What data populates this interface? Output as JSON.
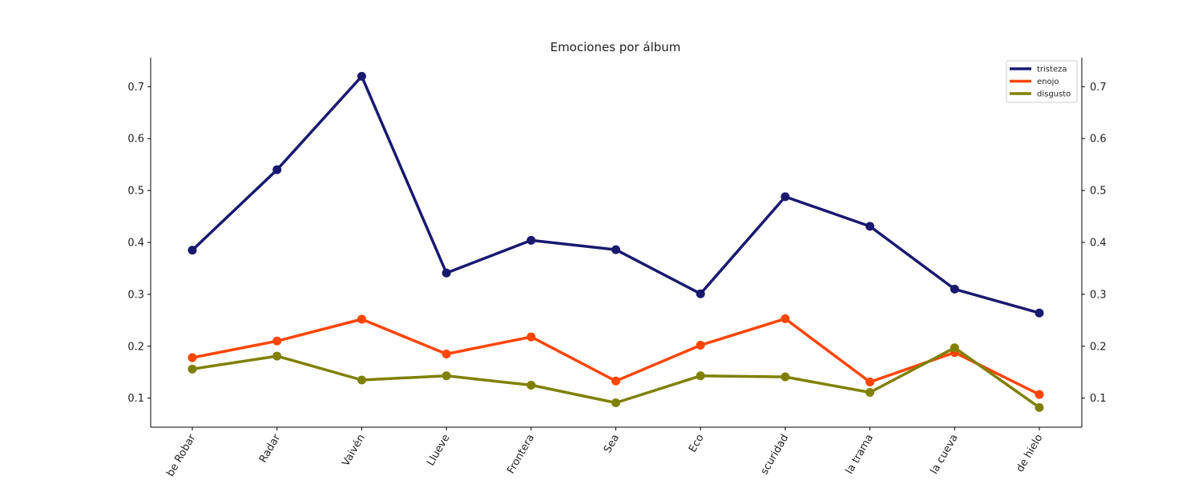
{
  "chart_data": {
    "type": "line",
    "title": "Emociones por álbum",
    "xlabel": "",
    "ylabel": "",
    "categories": [
      "Quién Me Ha Robado Mi Voz Sabe Robar",
      "Radar",
      "Vaivén",
      "Llueve",
      "Frontera",
      "Sea",
      "Eco",
      "La oscuridad",
      "Dentro de la trama",
      "Fuera de la cueva",
      "Cubos de hielo"
    ],
    "category_labels": [
      "be Robar",
      "Radar",
      "Vaivén",
      "Llueve",
      "Frontera",
      "Sea",
      "Eco",
      "scuridad",
      "la trama",
      "la cueva",
      "de hielo"
    ],
    "ylim": [
      0.044,
      0.756
    ],
    "yticks": [
      0.1,
      0.2,
      0.3,
      0.4,
      0.5,
      0.6,
      0.7
    ],
    "ytick_labels": [
      "0.1",
      "0.2",
      "0.3",
      "0.4",
      "0.5",
      "0.6",
      "0.7"
    ],
    "grid": false,
    "legend_position": "top-right",
    "series": [
      {
        "name": "tristeza",
        "color": "#191970",
        "values": [
          0.385,
          0.54,
          0.72,
          0.341,
          0.404,
          0.386,
          0.301,
          0.488,
          0.431,
          0.31,
          0.264
        ]
      },
      {
        "name": "enojo",
        "color": "#FF4500",
        "values": [
          0.178,
          0.21,
          0.252,
          0.185,
          0.218,
          0.133,
          0.202,
          0.253,
          0.131,
          0.188,
          0.107
        ]
      },
      {
        "name": "disgusto",
        "color": "#808000",
        "values": [
          0.156,
          0.181,
          0.135,
          0.143,
          0.125,
          0.091,
          0.143,
          0.141,
          0.111,
          0.197,
          0.082
        ]
      }
    ]
  }
}
